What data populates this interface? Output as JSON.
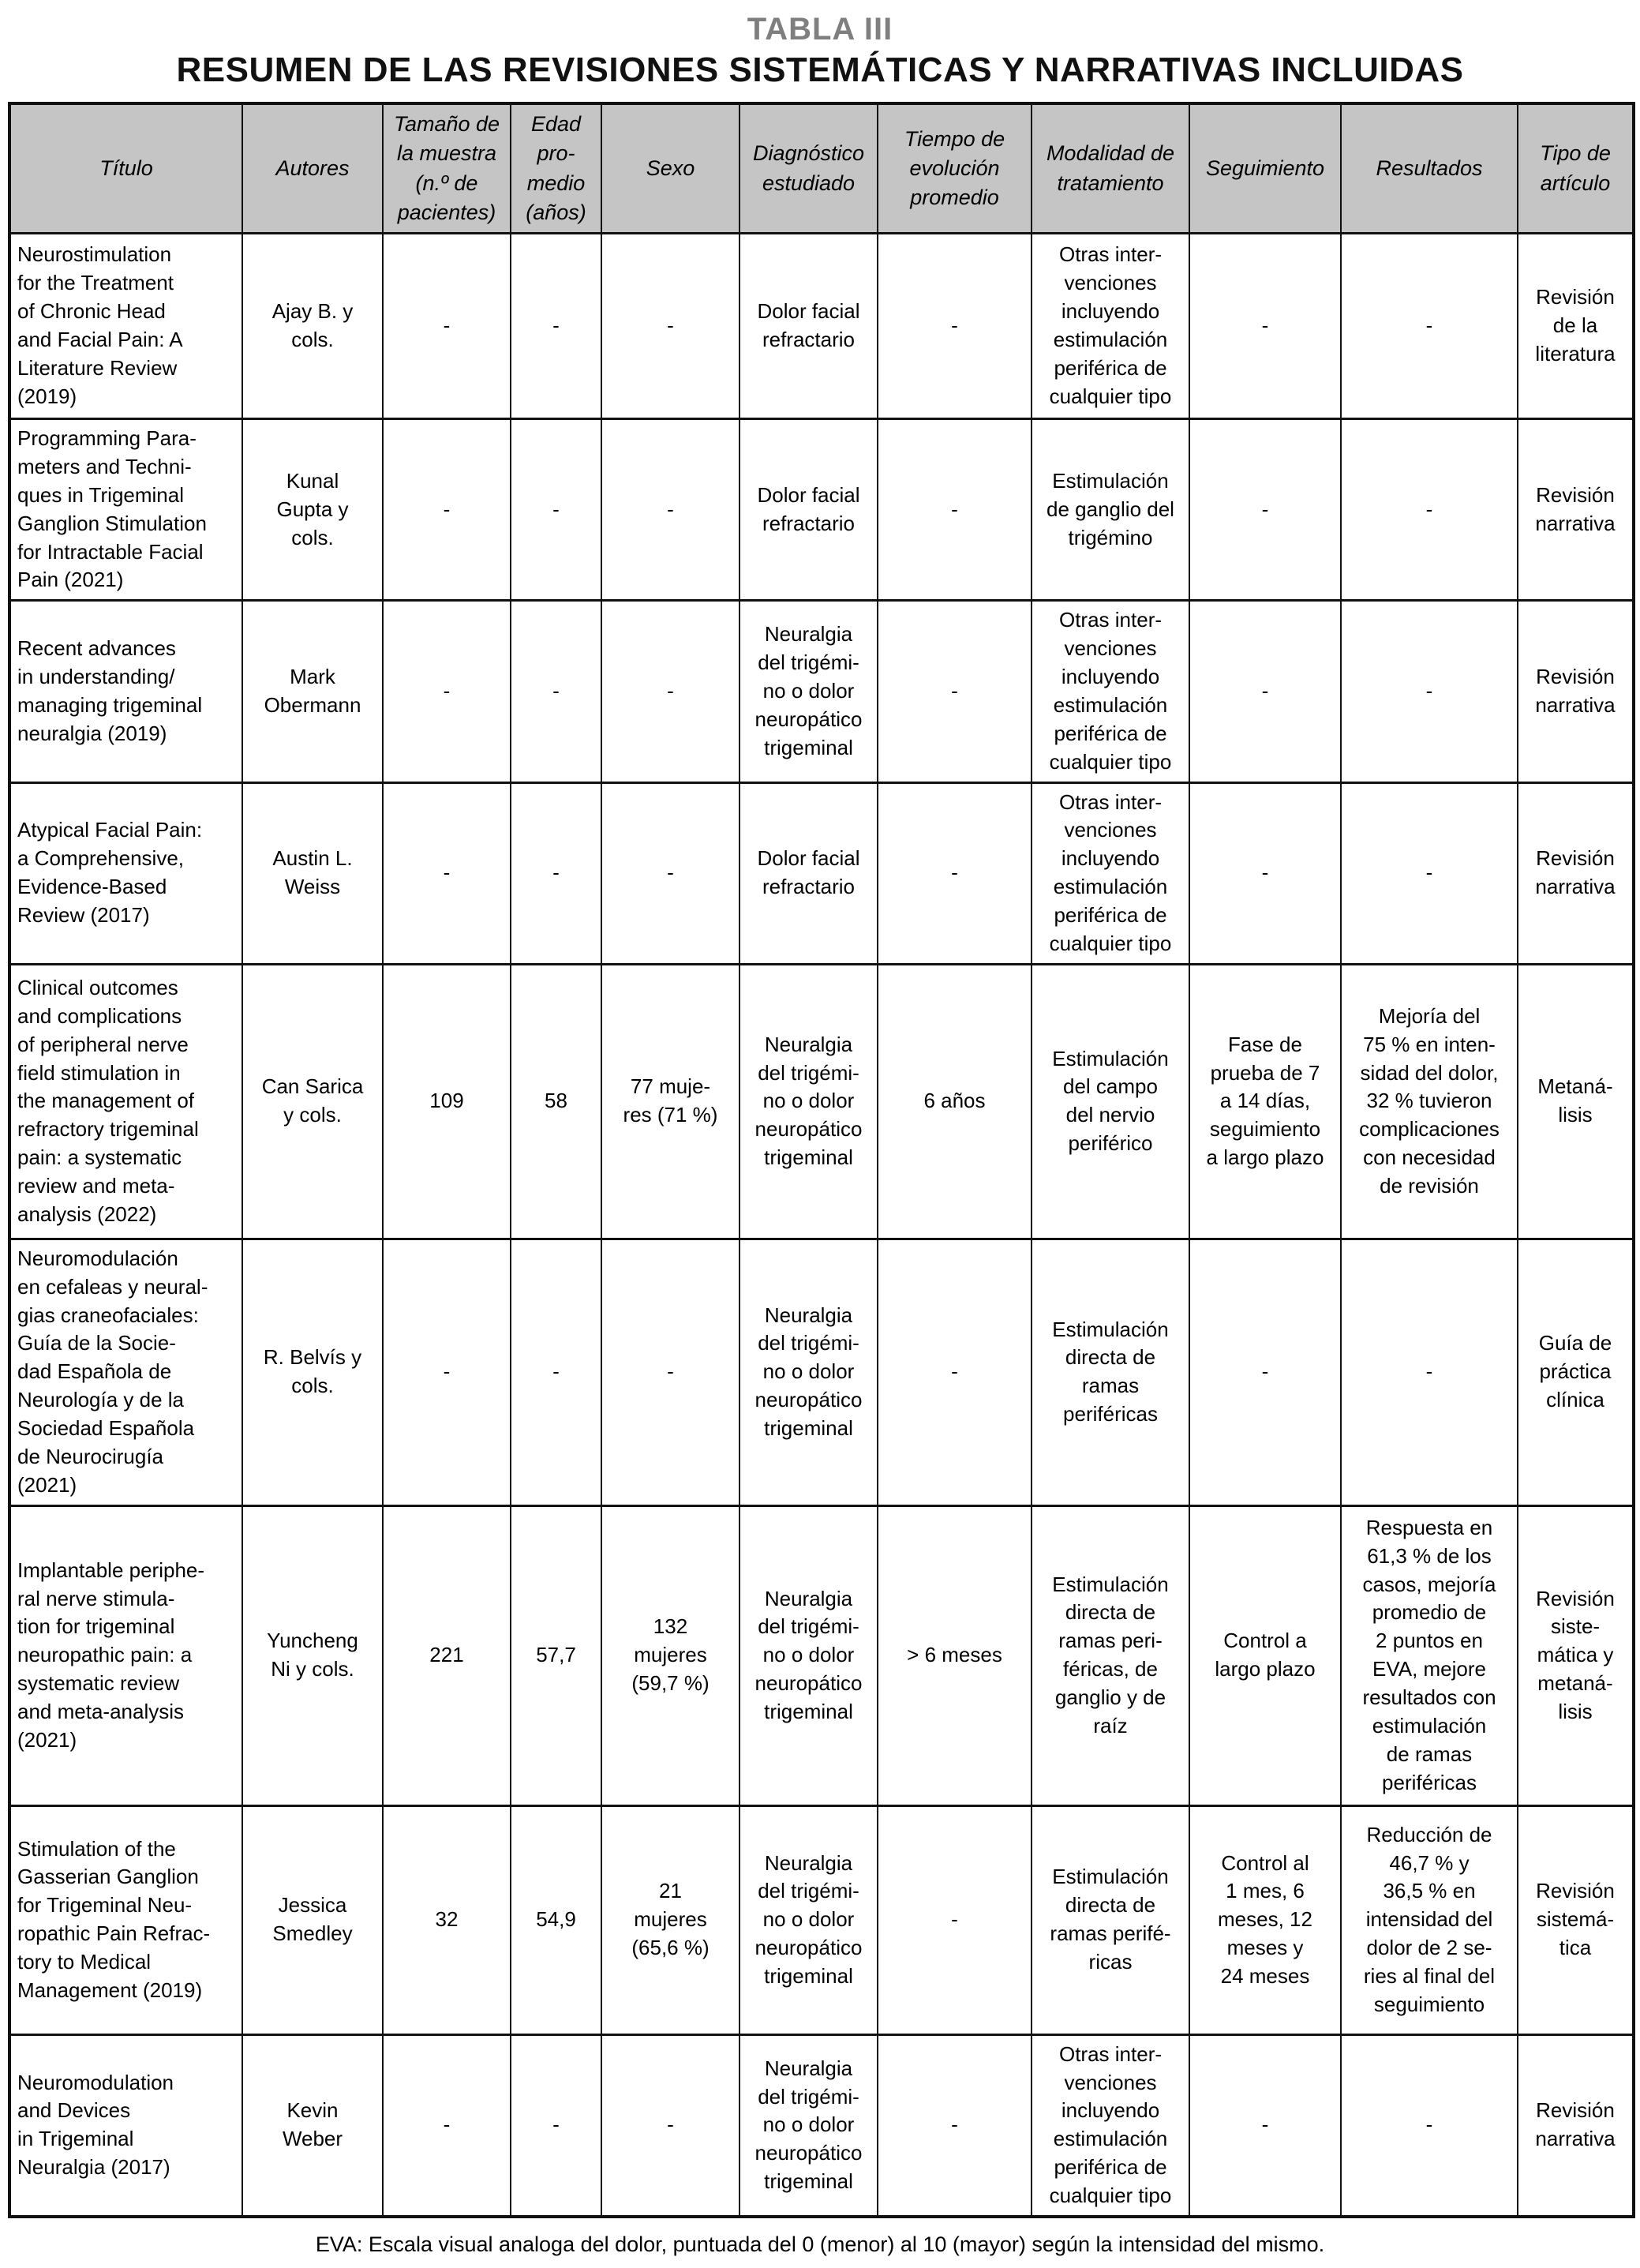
{
  "title": "TABLA III",
  "subtitle": "RESUMEN DE LAS REVISIONES SISTEMÁTICAS Y NARRATIVAS INCLUIDAS",
  "colors": {
    "header_background": "#c5c5c5",
    "border": "#111111",
    "title_gray": "#7f7f7f"
  },
  "table": {
    "columns": [
      "Título",
      "Autores",
      "Tamaño de\nla muestra\n(n.º de\npacientes)",
      "Edad\npro-\nmedio\n(años)",
      "Sexo",
      "Diagnóstico\nestudiado",
      "Tiempo de\nevolución\npromedio",
      "Modalidad de\ntratamiento",
      "Seguimiento",
      "Resultados",
      "Tipo de\nartículo"
    ],
    "rows": [
      [
        "Neurostimulation\nfor the Treatment\nof Chronic Head\nand Facial Pain: A\nLiterature Review\n(2019)",
        "Ajay B. y\ncols.",
        "-",
        "-",
        "-",
        "Dolor facial\nrefractario",
        "-",
        "Otras inter-\nvenciones\nincluyendo\nestimulación\nperiférica de\ncualquier tipo",
        "-",
        "-",
        "Revisión\nde la\nliteratura"
      ],
      [
        "Programming Para-\nmeters and Techni-\nques in Trigeminal\nGanglion Stimulation\nfor Intractable Facial\nPain (2021)",
        "Kunal\nGupta y\ncols.",
        "-",
        "-",
        "-",
        "Dolor facial\nrefractario",
        "-",
        "Estimulación\nde ganglio del\ntrigémino",
        "-",
        "-",
        "Revisión\nnarrativa"
      ],
      [
        "Recent advances\nin understanding/\nmanaging trigeminal\nneuralgia (2019)",
        "Mark\nObermann",
        "-",
        "-",
        "-",
        "Neuralgia\ndel trigémi-\nno o dolor\nneuropático\ntrigeminal",
        "-",
        "Otras inter-\nvenciones\nincluyendo\nestimulación\nperiférica de\ncualquier tipo",
        "-",
        "-",
        "Revisión\nnarrativa"
      ],
      [
        "Atypical Facial Pain:\na Comprehensive,\nEvidence-Based\nReview (2017)",
        "Austin L.\nWeiss",
        "-",
        "-",
        "-",
        "Dolor facial\nrefractario",
        "-",
        "Otras inter-\nvenciones\nincluyendo\nestimulación\nperiférica de\ncualquier tipo",
        "-",
        "-",
        "Revisión\nnarrativa"
      ],
      [
        "Clinical outcomes\nand complications\nof peripheral nerve\nfield stimulation in\nthe management of\nrefractory trigeminal\npain: a systematic\nreview and meta-\nanalysis (2022)",
        "Can Sarica\ny cols.",
        "109",
        "58",
        "77 muje-\nres (71 %)",
        "Neuralgia\ndel trigémi-\nno o dolor\nneuropático\ntrigeminal",
        "6 años",
        "Estimulación\ndel campo\ndel nervio\nperiférico",
        "Fase de\nprueba de 7\na 14 días,\nseguimiento\na largo plazo",
        "Mejoría del\n75 % en inten-\nsidad del dolor,\n32 % tuvieron\ncomplicaciones\ncon necesidad\nde revisión",
        "Metaná-\nlisis"
      ],
      [
        "Neuromodulación\nen cefaleas y neural-\ngias craneofaciales:\nGuía de la Socie-\ndad Española de\nNeurología y de la\nSociedad Española\nde Neurocirugía\n(2021)",
        "R. Belvís y\ncols.",
        "-",
        "-",
        "-",
        "Neuralgia\ndel trigémi-\nno o dolor\nneuropático\ntrigeminal",
        "-",
        "Estimulación\ndirecta de\nramas\nperiféricas",
        "-",
        "-",
        "Guía de\npráctica\nclínica"
      ],
      [
        "Implantable periphe-\nral nerve stimula-\ntion for trigeminal\nneuropathic pain: a\nsystematic review\nand meta-analysis\n(2021)",
        "Yuncheng\nNi y cols.",
        "221",
        "57,7",
        "132\nmujeres\n(59,7 %)",
        "Neuralgia\ndel trigémi-\nno o dolor\nneuropático\ntrigeminal",
        "> 6 meses",
        "Estimulación\ndirecta de\nramas peri-\nféricas, de\nganglio y de\nraíz",
        "Control a\nlargo plazo",
        "Respuesta en\n61,3 % de los\ncasos, mejoría\npromedio de\n2 puntos en\nEVA, mejore\nresultados con\nestimulación\nde ramas\nperiféricas",
        "Revisión\nsiste-\nmática y\nmetaná-\nlisis"
      ],
      [
        "Stimulation of the\nGasserian Ganglion\nfor Trigeminal Neu-\nropathic Pain Refrac-\ntory to Medical\nManagement (2019)",
        "Jessica\nSmedley",
        "32",
        "54,9",
        "21\nmujeres\n(65,6 %)",
        "Neuralgia\ndel trigémi-\nno o dolor\nneuropático\ntrigeminal",
        "-",
        "Estimulación\ndirecta de\nramas perifé-\nricas",
        "Control al\n1 mes, 6\nmeses, 12\nmeses y\n24 meses",
        "Reducción de\n46,7 % y\n36,5 % en\nintensidad del\ndolor de 2 se-\nries al final del\nseguimiento",
        "Revisión\nsistemá-\ntica"
      ],
      [
        "Neuromodulation\nand Devices\nin Trigeminal\nNeuralgia (2017)",
        "Kevin\nWeber",
        "-",
        "-",
        "-",
        "Neuralgia\ndel trigémi-\nno o dolor\nneuropático\ntrigeminal",
        "-",
        "Otras inter-\nvenciones\nincluyendo\nestimulación\nperiférica de\ncualquier tipo",
        "-",
        "-",
        "Revisión\nnarrativa"
      ]
    ]
  },
  "footnote": "EVA: Escala visual analoga del dolor, puntuada del 0 (menor) al 10 (mayor) según la intensidad del mismo."
}
